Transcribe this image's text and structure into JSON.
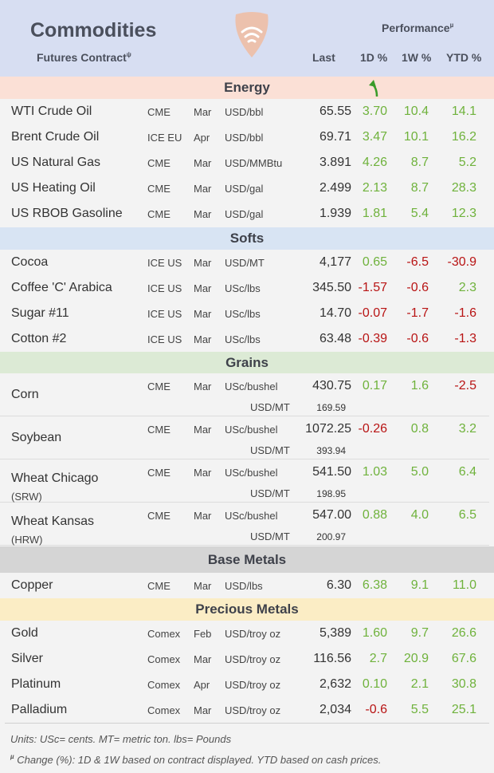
{
  "header": {
    "title": "Commodities",
    "subtitle": "Futures Contract",
    "subtitle_mark": "ψ",
    "performance": "Performance",
    "performance_mark": "µ",
    "col_last": "Last",
    "col_1d": "1D %",
    "col_1w": "1W %",
    "col_ytd": "YTD %"
  },
  "sections": {
    "energy": "Energy",
    "softs": "Softs",
    "grains": "Grains",
    "base_metals": "Base Metals",
    "precious_metals": "Precious Metals"
  },
  "energy": [
    {
      "name": "WTI Crude Oil",
      "exchange": "CME",
      "month": "Mar",
      "unit": "USD/bbl",
      "last": "65.55",
      "d1": "3.70",
      "w1": "10.4",
      "ytd": "14.1"
    },
    {
      "name": "Brent Crude Oil",
      "exchange": "ICE EU",
      "month": "Apr",
      "unit": "USD/bbl",
      "last": "69.71",
      "d1": "3.47",
      "w1": "10.1",
      "ytd": "16.2"
    },
    {
      "name": "US Natural Gas",
      "exchange": "CME",
      "month": "Mar",
      "unit": "USD/MMBtu",
      "last": "3.891",
      "d1": "4.26",
      "w1": "8.7",
      "ytd": "5.2"
    },
    {
      "name": "US Heating Oil",
      "exchange": "CME",
      "month": "Mar",
      "unit": "USD/gal",
      "last": "2.499",
      "d1": "2.13",
      "w1": "8.7",
      "ytd": "28.3"
    },
    {
      "name": "US RBOB Gasoline",
      "exchange": "CME",
      "month": "Mar",
      "unit": "USD/gal",
      "last": "1.939",
      "d1": "1.81",
      "w1": "5.4",
      "ytd": "12.3"
    }
  ],
  "softs": [
    {
      "name": "Cocoa",
      "exchange": "ICE US",
      "month": "Mar",
      "unit": "USD/MT",
      "last": "4,177",
      "d1": "0.65",
      "w1": "-6.5",
      "ytd": "-30.9"
    },
    {
      "name": "Coffee 'C' Arabica",
      "exchange": "ICE US",
      "month": "Mar",
      "unit": "USc/lbs",
      "last": "345.50",
      "d1": "-1.57",
      "w1": "-0.6",
      "ytd": "2.3"
    },
    {
      "name": "Sugar #11",
      "exchange": "ICE US",
      "month": "Mar",
      "unit": "USc/lbs",
      "last": "14.70",
      "d1": "-0.07",
      "w1": "-1.7",
      "ytd": "-1.6"
    },
    {
      "name": "Cotton #2",
      "exchange": "ICE US",
      "month": "Mar",
      "unit": "USc/lbs",
      "last": "63.48",
      "d1": "-0.39",
      "w1": "-0.6",
      "ytd": "-1.3"
    }
  ],
  "grains": [
    {
      "name": "Corn",
      "name2": "",
      "exchange": "CME",
      "month": "Mar",
      "unit": "USc/bushel",
      "last": "430.75",
      "unit2": "USD/MT",
      "last2": "169.59",
      "d1": "0.17",
      "w1": "1.6",
      "ytd": "-2.5"
    },
    {
      "name": "Soybean",
      "name2": "",
      "exchange": "CME",
      "month": "Mar",
      "unit": "USc/bushel",
      "last": "1072.25",
      "unit2": "USD/MT",
      "last2": "393.94",
      "d1": "-0.26",
      "w1": "0.8",
      "ytd": "3.2"
    },
    {
      "name": "Wheat Chicago",
      "name2": "(SRW)",
      "exchange": "CME",
      "month": "Mar",
      "unit": "USc/bushel",
      "last": "541.50",
      "unit2": "USD/MT",
      "last2": "198.95",
      "d1": "1.03",
      "w1": "5.0",
      "ytd": "6.4"
    },
    {
      "name": "Wheat Kansas",
      "name2": "(HRW)",
      "exchange": "CME",
      "month": "Mar",
      "unit": "USc/bushel",
      "last": "547.00",
      "unit2": "USD/MT",
      "last2": "200.97",
      "d1": "0.88",
      "w1": "4.0",
      "ytd": "6.5"
    }
  ],
  "base_metals": [
    {
      "name": "Copper",
      "exchange": "CME",
      "month": "Mar",
      "unit": "USD/lbs",
      "last": "6.30",
      "d1": "6.38",
      "w1": "9.1",
      "ytd": "11.0"
    }
  ],
  "precious_metals": [
    {
      "name": "Gold",
      "exchange": "Comex",
      "month": "Feb",
      "unit": "USD/troy oz",
      "last": "5,389",
      "d1": "1.60",
      "w1": "9.7",
      "ytd": "26.6"
    },
    {
      "name": "Silver",
      "exchange": "Comex",
      "month": "Mar",
      "unit": "USD/troy oz",
      "last": "116.56",
      "d1": "2.7",
      "w1": "20.9",
      "ytd": "67.6"
    },
    {
      "name": "Platinum",
      "exchange": "Comex",
      "month": "Apr",
      "unit": "USD/troy oz",
      "last": "2,632",
      "d1": "0.10",
      "w1": "2.1",
      "ytd": "30.8"
    },
    {
      "name": "Palladium",
      "exchange": "Comex",
      "month": "Mar",
      "unit": "USD/troy oz",
      "last": "2,034",
      "d1": "-0.6",
      "w1": "5.5",
      "ytd": "25.1"
    }
  ],
  "footer": {
    "units": "Units: USc= cents.  MT= metric ton.  lbs= Pounds",
    "change_mark": "µ",
    "change": " Change (%): 1D & 1W based on contract displayed. YTD based on cash prices."
  },
  "colors": {
    "positive": "#6fb23c",
    "negative": "#b81414",
    "header_bg": "#d7def2",
    "energy_bg": "#fbe0d6",
    "softs_bg": "#d8e4f3",
    "grains_bg": "#dcead5",
    "base_bg": "#d5d5d5",
    "precious_bg": "#fbedc5"
  },
  "icons": {
    "logo": "shield-wifi-logo",
    "trend": "green-up-arrow-icon"
  }
}
